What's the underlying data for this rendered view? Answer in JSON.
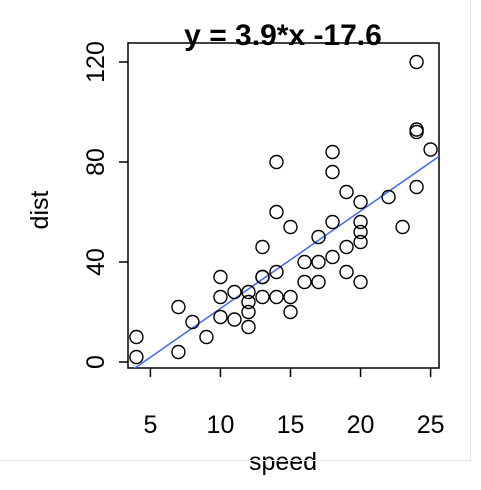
{
  "chart_data": {
    "type": "scatter",
    "title": "y = 3.9*x -17.6",
    "xlabel": "speed",
    "ylabel": "dist",
    "xlim": [
      3.4,
      25.6
    ],
    "ylim": [
      -2.4,
      127.6
    ],
    "xticks": [
      5,
      10,
      15,
      20,
      25
    ],
    "yticks": [
      0,
      40,
      80,
      120
    ],
    "xtick_labels": [
      "5",
      "10",
      "15",
      "20",
      "25"
    ],
    "ytick_labels": [
      "0",
      "40",
      "80",
      "120"
    ],
    "grid": false,
    "legend": "none",
    "marker": "open-circle",
    "point_color": "#000000",
    "line_color": "#4a6cf0",
    "fit": {
      "slope": 3.9,
      "intercept": -17.6
    },
    "points": [
      {
        "x": 4,
        "y": 2
      },
      {
        "x": 4,
        "y": 10
      },
      {
        "x": 7,
        "y": 4
      },
      {
        "x": 7,
        "y": 22
      },
      {
        "x": 8,
        "y": 16
      },
      {
        "x": 9,
        "y": 10
      },
      {
        "x": 10,
        "y": 18
      },
      {
        "x": 10,
        "y": 26
      },
      {
        "x": 10,
        "y": 34
      },
      {
        "x": 11,
        "y": 17
      },
      {
        "x": 11,
        "y": 28
      },
      {
        "x": 12,
        "y": 14
      },
      {
        "x": 12,
        "y": 20
      },
      {
        "x": 12,
        "y": 24
      },
      {
        "x": 12,
        "y": 28
      },
      {
        "x": 13,
        "y": 26
      },
      {
        "x": 13,
        "y": 34
      },
      {
        "x": 13,
        "y": 34
      },
      {
        "x": 13,
        "y": 46
      },
      {
        "x": 14,
        "y": 26
      },
      {
        "x": 14,
        "y": 36
      },
      {
        "x": 14,
        "y": 60
      },
      {
        "x": 14,
        "y": 80
      },
      {
        "x": 15,
        "y": 20
      },
      {
        "x": 15,
        "y": 26
      },
      {
        "x": 15,
        "y": 54
      },
      {
        "x": 16,
        "y": 32
      },
      {
        "x": 16,
        "y": 40
      },
      {
        "x": 17,
        "y": 32
      },
      {
        "x": 17,
        "y": 40
      },
      {
        "x": 17,
        "y": 50
      },
      {
        "x": 18,
        "y": 42
      },
      {
        "x": 18,
        "y": 56
      },
      {
        "x": 18,
        "y": 76
      },
      {
        "x": 18,
        "y": 84
      },
      {
        "x": 19,
        "y": 36
      },
      {
        "x": 19,
        "y": 46
      },
      {
        "x": 19,
        "y": 68
      },
      {
        "x": 20,
        "y": 32
      },
      {
        "x": 20,
        "y": 48
      },
      {
        "x": 20,
        "y": 52
      },
      {
        "x": 20,
        "y": 56
      },
      {
        "x": 20,
        "y": 64
      },
      {
        "x": 22,
        "y": 66
      },
      {
        "x": 23,
        "y": 54
      },
      {
        "x": 24,
        "y": 70
      },
      {
        "x": 24,
        "y": 92
      },
      {
        "x": 24,
        "y": 93
      },
      {
        "x": 24,
        "y": 120
      },
      {
        "x": 25,
        "y": 85
      }
    ]
  }
}
